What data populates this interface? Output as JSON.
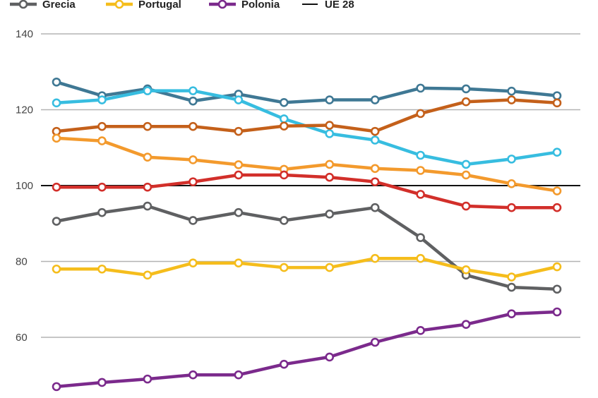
{
  "chart_data": {
    "type": "line",
    "title": "",
    "xlabel": "",
    "ylabel": "",
    "ylim": [
      45,
      140
    ],
    "y_ticks": [
      60,
      80,
      100,
      120,
      140
    ],
    "grid": true,
    "legend_position": "top-left",
    "point_count": 12,
    "reference_line": {
      "name": "UE 28",
      "value": 100,
      "color": "#111111"
    },
    "legend": [
      {
        "name": "Grecia",
        "color": "#5f6062"
      },
      {
        "name": "Portugal",
        "color": "#f5bd1c"
      },
      {
        "name": "Polonia",
        "color": "#7b2a8c"
      },
      {
        "name": "UE 28",
        "color": "#111111"
      }
    ],
    "series": [
      {
        "color": "#3f7894",
        "values": [
          127.3,
          123.7,
          125.5,
          122.3,
          124.1,
          121.9,
          122.6,
          122.6,
          125.7,
          125.5,
          124.9,
          123.7
        ]
      },
      {
        "color": "#37bde0",
        "values": [
          121.8,
          122.6,
          125.0,
          125.0,
          122.6,
          117.6,
          113.7,
          112.0,
          108.0,
          105.6,
          107.0,
          108.8
        ]
      },
      {
        "color": "#c4601a",
        "values": [
          114.3,
          115.6,
          115.6,
          115.6,
          114.3,
          115.7,
          115.9,
          114.3,
          119.0,
          122.1,
          122.6,
          121.8
        ]
      },
      {
        "color": "#f39a2d",
        "values": [
          112.5,
          111.8,
          107.5,
          106.8,
          105.5,
          104.3,
          105.6,
          104.5,
          104.0,
          102.8,
          100.5,
          98.6
        ]
      },
      {
        "color": "#d22f2a",
        "values": [
          99.6,
          99.6,
          99.6,
          101.0,
          102.8,
          102.8,
          102.2,
          101.0,
          97.7,
          94.6,
          94.2,
          94.2
        ]
      },
      {
        "name": "Grecia",
        "color": "#5f6062",
        "values": [
          90.6,
          92.9,
          94.6,
          90.8,
          92.9,
          90.8,
          92.5,
          94.2,
          86.3,
          76.4,
          73.2,
          72.7
        ]
      },
      {
        "name": "Portugal",
        "color": "#f5bd1c",
        "values": [
          78.0,
          78.0,
          76.4,
          79.6,
          79.6,
          78.4,
          78.4,
          80.8,
          80.8,
          77.8,
          75.9,
          78.6
        ]
      },
      {
        "name": "Polonia",
        "color": "#7b2a8c",
        "values": [
          47.0,
          48.1,
          49.0,
          50.1,
          50.1,
          52.9,
          54.8,
          58.7,
          61.8,
          63.4,
          66.2,
          66.7
        ]
      }
    ]
  }
}
